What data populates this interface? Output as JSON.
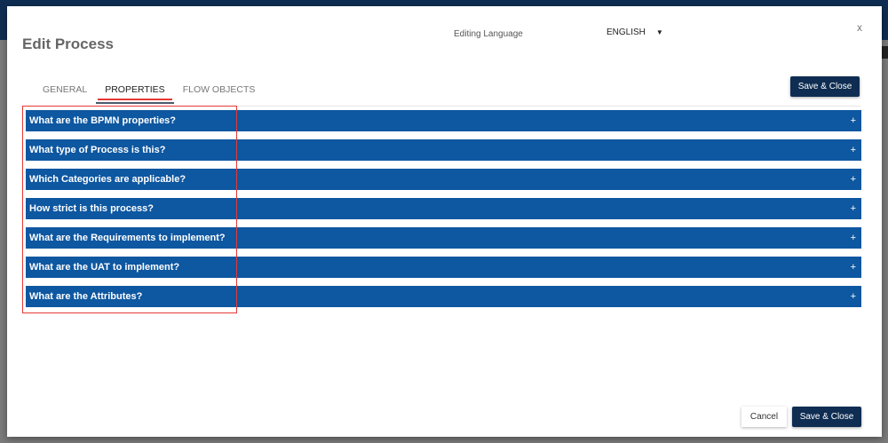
{
  "dialog": {
    "title": "Edit Process",
    "close_label": "x"
  },
  "language": {
    "label": "Editing Language",
    "value": "ENGLISH"
  },
  "tabs": [
    {
      "label": "GENERAL"
    },
    {
      "label": "PROPERTIES"
    },
    {
      "label": "FLOW OBJECTS"
    }
  ],
  "active_tab": "PROPERTIES",
  "panels": [
    {
      "label": "What are the BPMN properties?",
      "icon": "+"
    },
    {
      "label": "What type of Process is this?",
      "icon": "+"
    },
    {
      "label": "Which Categories are applicable?",
      "icon": "+"
    },
    {
      "label": "How strict is this process?",
      "icon": "+"
    },
    {
      "label": "What are the Requirements to implement?",
      "icon": "+"
    },
    {
      "label": "What are the UAT to implement?",
      "icon": "+"
    },
    {
      "label": "What are the Attributes?",
      "icon": "+"
    }
  ],
  "buttons": {
    "save_close": "Save & Close",
    "cancel": "Cancel"
  },
  "colors": {
    "panel": "#0e57a1",
    "primary": "#0f2d52",
    "highlight": "#e53935"
  }
}
